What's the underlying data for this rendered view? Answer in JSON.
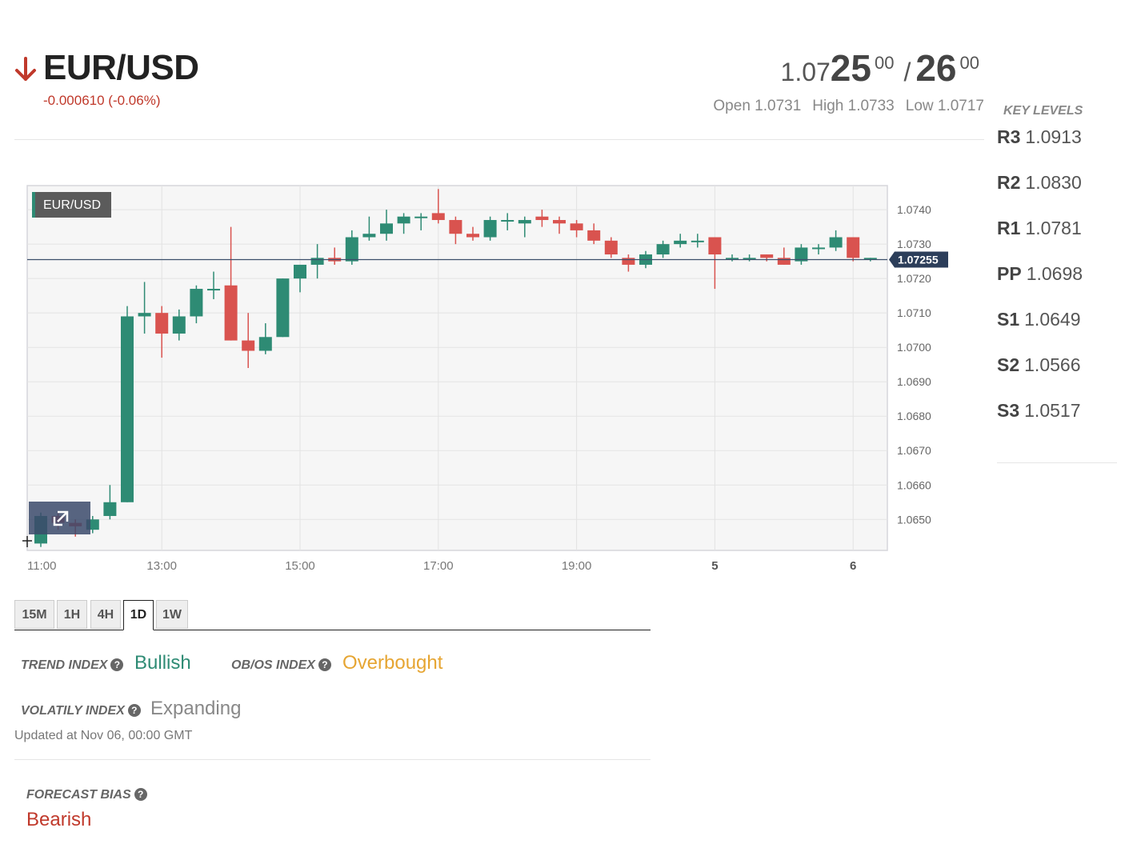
{
  "header": {
    "pair": "EUR/USD",
    "change": "-0.000610 (-0.06%)",
    "direction": "down",
    "direction_color": "#c0392b"
  },
  "quote": {
    "bid_prefix": "1.07",
    "bid_main": "25",
    "bid_sup": "00",
    "separator": "/",
    "ask_main": "26",
    "ask_sup": "00"
  },
  "ohl": {
    "open": "Open 1.0731",
    "high": "High 1.0733",
    "low": "Low 1.0717"
  },
  "key_levels": {
    "title": "KEY LEVELS",
    "items": [
      {
        "name": "R3",
        "value": "1.0913"
      },
      {
        "name": "R2",
        "value": "1.0830"
      },
      {
        "name": "R1",
        "value": "1.0781"
      },
      {
        "name": "PP",
        "value": "1.0698"
      },
      {
        "name": "S1",
        "value": "1.0649"
      },
      {
        "name": "S2",
        "value": "1.0566"
      },
      {
        "name": "S3",
        "value": "1.0517"
      }
    ]
  },
  "chart_data": {
    "type": "candlestick",
    "legend": "EUR/USD",
    "current_price": "1.07255",
    "current_value": 1.07255,
    "ylim": [
      1.0641,
      1.0747
    ],
    "y_ticks": [
      "1.0650",
      "1.0660",
      "1.0670",
      "1.0680",
      "1.0690",
      "1.0700",
      "1.0710",
      "1.0720",
      "1.0730",
      "1.0740"
    ],
    "x_ticks": [
      "11:00",
      "13:00",
      "15:00",
      "17:00",
      "19:00",
      "5",
      "6"
    ],
    "up_color": "#2e8b74",
    "down_color": "#d9534f",
    "candles": [
      {
        "o": 1.0643,
        "h": 1.0652,
        "l": 1.0642,
        "c": 1.0651
      },
      {
        "o": 1.0651,
        "h": 1.0652,
        "l": 1.0647,
        "c": 1.0649
      },
      {
        "o": 1.0649,
        "h": 1.065,
        "l": 1.0645,
        "c": 1.0648
      },
      {
        "o": 1.0647,
        "h": 1.0651,
        "l": 1.0646,
        "c": 1.065
      },
      {
        "o": 1.0651,
        "h": 1.066,
        "l": 1.065,
        "c": 1.0655
      },
      {
        "o": 1.0655,
        "h": 1.0712,
        "l": 1.0655,
        "c": 1.0709
      },
      {
        "o": 1.0709,
        "h": 1.0719,
        "l": 1.0704,
        "c": 1.071
      },
      {
        "o": 1.071,
        "h": 1.0712,
        "l": 1.0697,
        "c": 1.0704
      },
      {
        "o": 1.0704,
        "h": 1.0711,
        "l": 1.0702,
        "c": 1.0709
      },
      {
        "o": 1.0709,
        "h": 1.0718,
        "l": 1.0707,
        "c": 1.0717
      },
      {
        "o": 1.0717,
        "h": 1.0722,
        "l": 1.0714,
        "c": 1.0717
      },
      {
        "o": 1.0718,
        "h": 1.0735,
        "l": 1.0702,
        "c": 1.0702
      },
      {
        "o": 1.0702,
        "h": 1.071,
        "l": 1.0694,
        "c": 1.0699
      },
      {
        "o": 1.0699,
        "h": 1.0707,
        "l": 1.0698,
        "c": 1.0703
      },
      {
        "o": 1.0703,
        "h": 1.072,
        "l": 1.0703,
        "c": 1.072
      },
      {
        "o": 1.072,
        "h": 1.0724,
        "l": 1.0716,
        "c": 1.0724
      },
      {
        "o": 1.0724,
        "h": 1.073,
        "l": 1.072,
        "c": 1.0726
      },
      {
        "o": 1.0726,
        "h": 1.0729,
        "l": 1.0724,
        "c": 1.0725
      },
      {
        "o": 1.0725,
        "h": 1.0734,
        "l": 1.0724,
        "c": 1.0732
      },
      {
        "o": 1.0732,
        "h": 1.0738,
        "l": 1.0731,
        "c": 1.0733
      },
      {
        "o": 1.0733,
        "h": 1.074,
        "l": 1.0731,
        "c": 1.0736
      },
      {
        "o": 1.0736,
        "h": 1.0739,
        "l": 1.0733,
        "c": 1.0738
      },
      {
        "o": 1.0738,
        "h": 1.0739,
        "l": 1.0734,
        "c": 1.0738
      },
      {
        "o": 1.0739,
        "h": 1.0746,
        "l": 1.0736,
        "c": 1.0737
      },
      {
        "o": 1.0737,
        "h": 1.0738,
        "l": 1.073,
        "c": 1.0733
      },
      {
        "o": 1.0733,
        "h": 1.0735,
        "l": 1.0731,
        "c": 1.0732
      },
      {
        "o": 1.0732,
        "h": 1.0738,
        "l": 1.0731,
        "c": 1.0737
      },
      {
        "o": 1.0737,
        "h": 1.0739,
        "l": 1.0734,
        "c": 1.0737
      },
      {
        "o": 1.0736,
        "h": 1.0738,
        "l": 1.0732,
        "c": 1.0737
      },
      {
        "o": 1.0738,
        "h": 1.074,
        "l": 1.0735,
        "c": 1.0737
      },
      {
        "o": 1.0737,
        "h": 1.0738,
        "l": 1.0733,
        "c": 1.0736
      },
      {
        "o": 1.0736,
        "h": 1.0737,
        "l": 1.0732,
        "c": 1.0734
      },
      {
        "o": 1.0734,
        "h": 1.0736,
        "l": 1.073,
        "c": 1.0731
      },
      {
        "o": 1.0731,
        "h": 1.0732,
        "l": 1.0726,
        "c": 1.0727
      },
      {
        "o": 1.0726,
        "h": 1.0727,
        "l": 1.0722,
        "c": 1.0724
      },
      {
        "o": 1.0724,
        "h": 1.0728,
        "l": 1.0723,
        "c": 1.0727
      },
      {
        "o": 1.0727,
        "h": 1.0731,
        "l": 1.0726,
        "c": 1.073
      },
      {
        "o": 1.073,
        "h": 1.0733,
        "l": 1.0729,
        "c": 1.0731
      },
      {
        "o": 1.0731,
        "h": 1.0733,
        "l": 1.0729,
        "c": 1.0731
      },
      {
        "o": 1.0732,
        "h": 1.0732,
        "l": 1.0717,
        "c": 1.0727
      },
      {
        "o": 1.0726,
        "h": 1.0727,
        "l": 1.0725,
        "c": 1.0726
      },
      {
        "o": 1.0726,
        "h": 1.0727,
        "l": 1.0725,
        "c": 1.0726
      },
      {
        "o": 1.0727,
        "h": 1.0727,
        "l": 1.0725,
        "c": 1.0726
      },
      {
        "o": 1.0726,
        "h": 1.0729,
        "l": 1.0724,
        "c": 1.0724
      },
      {
        "o": 1.0725,
        "h": 1.073,
        "l": 1.0724,
        "c": 1.0729
      },
      {
        "o": 1.0729,
        "h": 1.073,
        "l": 1.0727,
        "c": 1.0729
      },
      {
        "o": 1.0729,
        "h": 1.0734,
        "l": 1.0728,
        "c": 1.0732
      },
      {
        "o": 1.0732,
        "h": 1.0732,
        "l": 1.0725,
        "c": 1.0726
      },
      {
        "o": 1.0726,
        "h": 1.0726,
        "l": 1.0725,
        "c": 1.0726
      }
    ]
  },
  "timeframes": {
    "tabs": [
      "15M",
      "1H",
      "4H",
      "1D",
      "1W"
    ],
    "active": "1D"
  },
  "indicators": {
    "trend_label": "TREND INDEX",
    "trend_value": "Bullish",
    "trend_color": "#2e8b74",
    "obos_label": "OB/OS INDEX",
    "obos_value": "Overbought",
    "obos_color": "#e6a532",
    "volatility_label": "VOLATILY INDEX",
    "volatility_value": "Expanding",
    "volatility_color": "#888888",
    "updated": "Updated at Nov 06, 00:00 GMT"
  },
  "forecast": {
    "label": "FORECAST BIAS",
    "value": "Bearish",
    "color": "#c0392b"
  },
  "icons": [
    "arrow-down-icon",
    "expand-icon",
    "help-icon"
  ]
}
